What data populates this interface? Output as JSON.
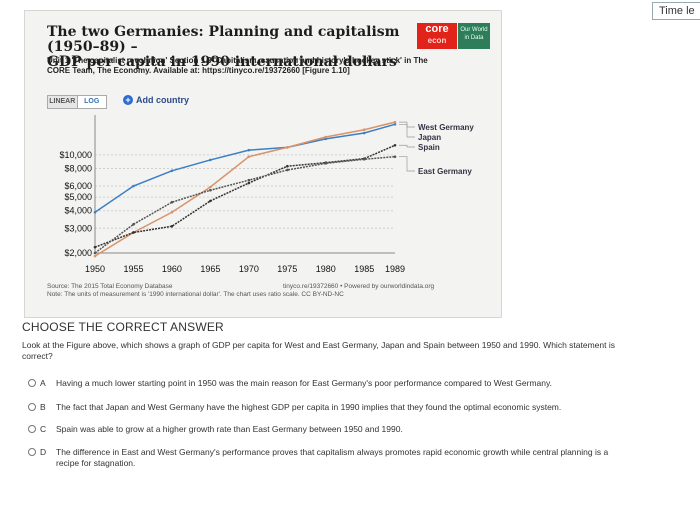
{
  "timer": {
    "label": "Time le"
  },
  "figure": {
    "title_line1": "The two Germanies: Planning and capitalism (1950–89) –",
    "title_line2": "GDP per capita in 1990 international dollars",
    "subtitle_line1": "Unit 1 'The capitalist revolution' Section 1.9 'Capitalism, causation and history's hockey stick' in The",
    "subtitle_line2": "CORE Team, The Economy. Available at: https://tinyco.re/19372660 [Figure 1.10]",
    "logo_core_top": "core",
    "logo_core_bottom": "econ",
    "logo_owid": "Our World in Data",
    "scale_linear": "LINEAR",
    "scale_log": "LOG",
    "add_country": "Add country",
    "source": "Source: The 2015 Total Economy Database",
    "link": "tinyco.re/19372660 • Powered by ourworldindata.org",
    "note": "Note: The units of measurement is '1990 international dollar'. The chart uses ratio scale. CC BY-ND-NC"
  },
  "chart_data": {
    "type": "line",
    "scale": "log",
    "x": [
      1950,
      1955,
      1960,
      1965,
      1970,
      1975,
      1980,
      1985,
      1989
    ],
    "x_ticks": [
      "1950",
      "1955",
      "1960",
      "1965",
      "1970",
      "1975",
      "1980",
      "1985",
      "1989"
    ],
    "y_ticks": [
      {
        "v": 2000,
        "label": "$2,000"
      },
      {
        "v": 3000,
        "label": "$3,000"
      },
      {
        "v": 4000,
        "label": "$4,000"
      },
      {
        "v": 5000,
        "label": "$5,000"
      },
      {
        "v": 6000,
        "label": "$6,000"
      },
      {
        "v": 8000,
        "label": "$8,000"
      },
      {
        "v": 10000,
        "label": "$10,000"
      }
    ],
    "ylim": [
      2000,
      18000
    ],
    "series": [
      {
        "name": "West Germany",
        "color": "#3b7fc4",
        "values": [
          3900,
          6000,
          7700,
          9200,
          10800,
          11300,
          13000,
          14300,
          16500
        ]
      },
      {
        "name": "Japan",
        "color": "#d9936a",
        "values": [
          1900,
          2800,
          3900,
          5900,
          9700,
          11300,
          13400,
          15100,
          17100
        ]
      },
      {
        "name": "Spain",
        "color": "#333333",
        "values": [
          2200,
          2800,
          3100,
          4700,
          6300,
          8300,
          8800,
          9400,
          11700
        ]
      },
      {
        "name": "East Germany",
        "color": "#555555",
        "values": [
          2000,
          3200,
          4600,
          5600,
          6600,
          7800,
          8700,
          9300,
          9700
        ]
      }
    ]
  },
  "question": {
    "heading": "CHOOSE THE CORRECT ANSWER",
    "text_line1": "Look at the Figure above, which shows a graph of GDP per capita for West and East Germany, Japan and Spain between 1950 and 1990. Which statement is",
    "text_line2": "correct?",
    "options": [
      {
        "letter": "A",
        "line1": "Having a much lower starting point in 1950 was the main reason for East Germany's poor performance compared to West Germany.",
        "line2": ""
      },
      {
        "letter": "B",
        "line1": "The fact that Japan and West Germany have the highest GDP per capita in 1990 implies that they found the optimal economic system.",
        "line2": ""
      },
      {
        "letter": "C",
        "line1": "Spain was able to grow at a higher growth rate than East Germany between 1950 and 1990.",
        "line2": ""
      },
      {
        "letter": "D",
        "line1": "The difference in East and West Germany's performance proves that capitalism always promotes rapid economic growth while central planning is a",
        "line2": "recipe for stagnation."
      }
    ]
  }
}
